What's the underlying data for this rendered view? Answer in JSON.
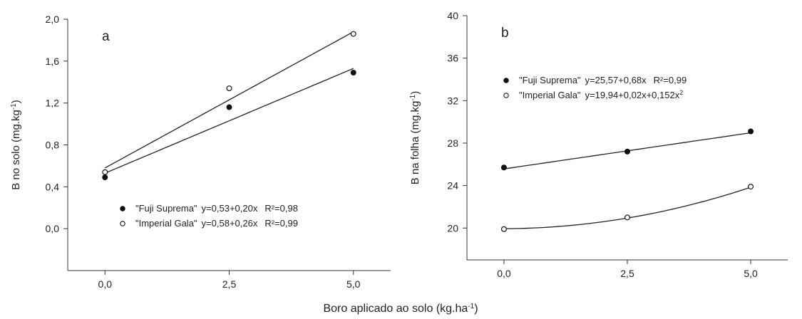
{
  "x_label": "Boro aplicado ao solo (kg.ha",
  "x_label_sup": "-1",
  "x_label_end": ")",
  "chart_data": [
    {
      "type": "scatter",
      "panel_label": "a",
      "ylabel": "B no solo (mg.kg",
      "ylabel_sup": "-1",
      "ylabel_end": ")",
      "xlim": [
        -0.75,
        5.75
      ],
      "ylim": [
        -0.4,
        2.0
      ],
      "xticks": [
        0,
        2.5,
        5
      ],
      "xtick_labels": [
        "0,0",
        "2,5",
        "5,0"
      ],
      "yticks": [
        0.0,
        0.4,
        0.8,
        1.2,
        1.6,
        2.0
      ],
      "ytick_labels": [
        "0,0",
        "0,4",
        "0,8",
        "1,2",
        "1,6",
        "2,0"
      ],
      "series": [
        {
          "name": "\"Fuji Suprema\"",
          "marker": "filled",
          "x": [
            0,
            2.5,
            5
          ],
          "y": [
            0.49,
            1.16,
            1.49
          ],
          "fit": {
            "a": 0.53,
            "b": 0.2,
            "c": 0
          },
          "equation": "y=0,53+0,20x",
          "r2": "R²=0,98"
        },
        {
          "name": "\"Imperial Gala\"",
          "marker": "open",
          "x": [
            0,
            2.5,
            5
          ],
          "y": [
            0.54,
            1.34,
            1.86
          ],
          "fit": {
            "a": 0.58,
            "b": 0.26,
            "c": 0
          },
          "equation": "y=0,58+0,26x",
          "r2": "R²=0,99"
        }
      ],
      "legend_position": "bottom-center"
    },
    {
      "type": "scatter",
      "panel_label": "b",
      "ylabel": "B na folha (mg.kg",
      "ylabel_sup": "-1",
      "ylabel_end": ")",
      "xlim": [
        -0.75,
        5.75
      ],
      "ylim": [
        17,
        40
      ],
      "xticks": [
        0,
        2.5,
        5
      ],
      "xtick_labels": [
        "0,0",
        "2,5",
        "5,0"
      ],
      "yticks": [
        20,
        24,
        28,
        32,
        36,
        40
      ],
      "ytick_labels": [
        "20",
        "24",
        "28",
        "32",
        "36",
        "40"
      ],
      "series": [
        {
          "name": "\"Fuji Suprema\"",
          "marker": "filled",
          "x": [
            0,
            2.5,
            5
          ],
          "y": [
            25.7,
            27.2,
            29.1
          ],
          "fit": {
            "a": 25.57,
            "b": 0.68,
            "c": 0
          },
          "equation": "y=25,57+0,68x",
          "r2": "R²=0,99"
        },
        {
          "name": "\"Imperial Gala\"",
          "marker": "open",
          "x": [
            0,
            2.5,
            5
          ],
          "y": [
            19.9,
            21.0,
            23.9
          ],
          "fit": {
            "a": 19.94,
            "b": 0.02,
            "c": 0.152
          },
          "equation": "y=19,94+0,02x+0,152x",
          "equation_sup": "2",
          "r2": ""
        }
      ],
      "legend_position": "top-left"
    }
  ]
}
